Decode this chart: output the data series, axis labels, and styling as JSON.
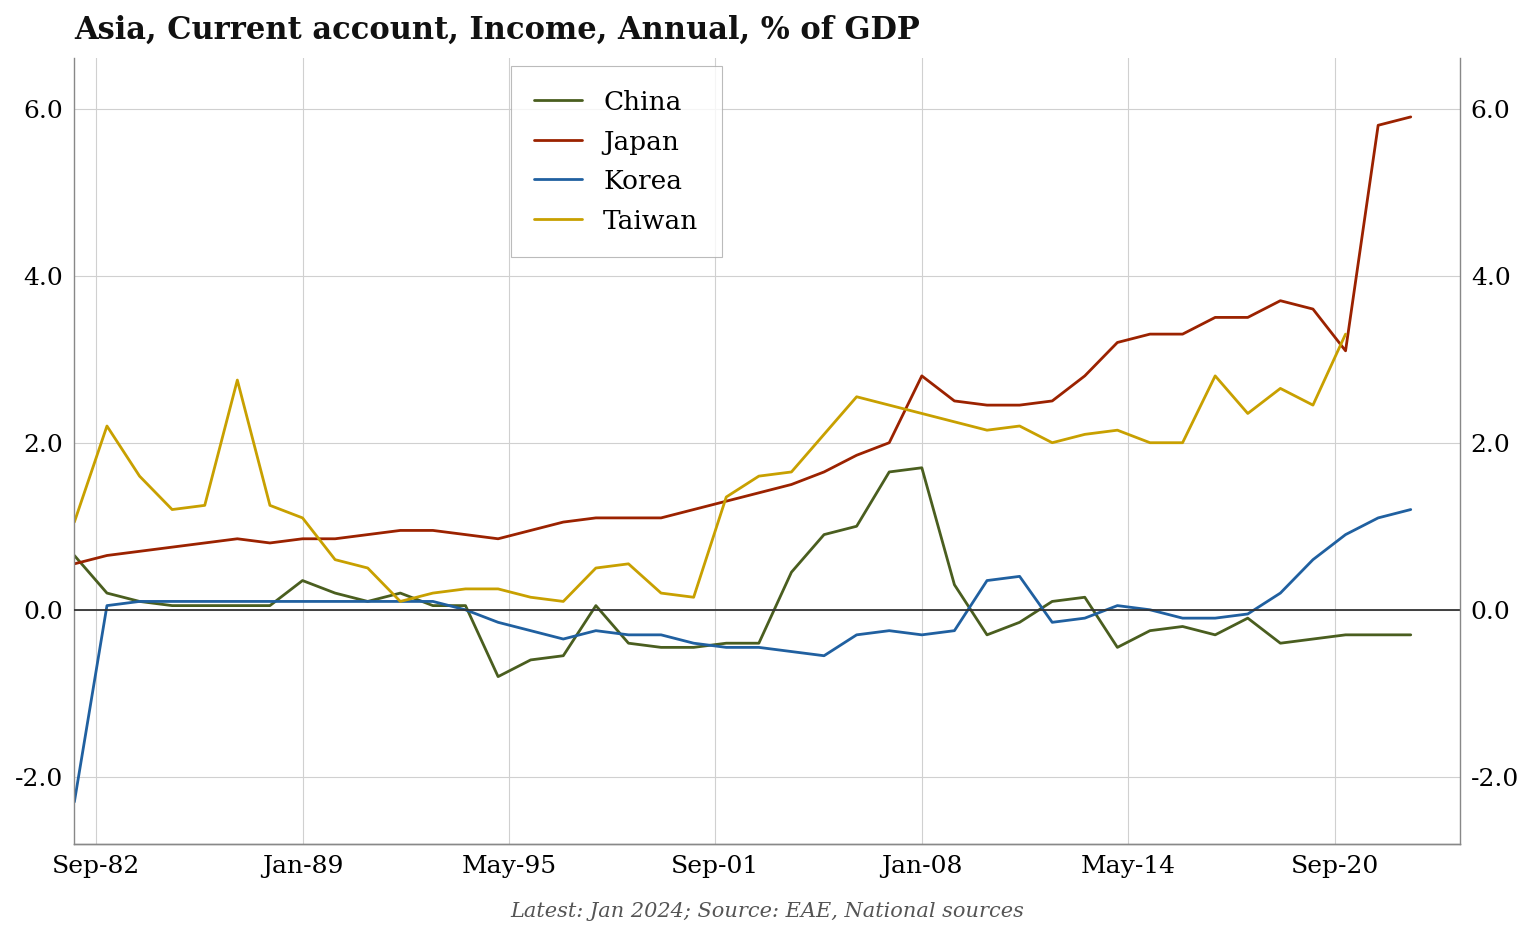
{
  "title": "Asia, Current account, Income, Annual, % of GDP",
  "subtitle": "Latest: Jan 2024; Source: EAE, National sources",
  "ylim": [
    -2.8,
    6.6
  ],
  "yticks": [
    -2.0,
    0.0,
    2.0,
    4.0,
    6.0
  ],
  "background_color": "#ffffff",
  "grid_color": "#d0d0d0",
  "zero_line_color": "#333333",
  "colors": {
    "China": "#4a5e1f",
    "Japan": "#9b2200",
    "Korea": "#2060a0",
    "Taiwan": "#c8a000"
  },
  "china": {
    "years": [
      1982,
      1983,
      1984,
      1985,
      1986,
      1987,
      1988,
      1989,
      1990,
      1991,
      1992,
      1993,
      1994,
      1995,
      1996,
      1997,
      1998,
      1999,
      2000,
      2001,
      2002,
      2003,
      2004,
      2005,
      2006,
      2007,
      2008,
      2009,
      2010,
      2011,
      2012,
      2013,
      2014,
      2015,
      2016,
      2017,
      2018,
      2019,
      2020,
      2021,
      2022,
      2023
    ],
    "values": [
      0.65,
      0.2,
      0.1,
      0.05,
      0.05,
      0.05,
      0.05,
      0.35,
      0.2,
      0.1,
      0.2,
      0.05,
      0.05,
      -0.8,
      -0.6,
      -0.55,
      0.05,
      -0.4,
      -0.45,
      -0.45,
      -0.4,
      -0.4,
      0.45,
      0.9,
      1.0,
      1.65,
      1.7,
      0.3,
      -0.3,
      -0.15,
      0.1,
      0.15,
      -0.45,
      -0.25,
      -0.2,
      -0.3,
      -0.1,
      -0.4,
      -0.35,
      -0.3,
      -0.3,
      -0.3
    ]
  },
  "japan": {
    "years": [
      1982,
      1983,
      1984,
      1985,
      1986,
      1987,
      1988,
      1989,
      1990,
      1991,
      1992,
      1993,
      1994,
      1995,
      1996,
      1997,
      1998,
      1999,
      2000,
      2001,
      2002,
      2003,
      2004,
      2005,
      2006,
      2007,
      2008,
      2009,
      2010,
      2011,
      2012,
      2013,
      2014,
      2015,
      2016,
      2017,
      2018,
      2019,
      2020,
      2021,
      2022,
      2023
    ],
    "values": [
      0.55,
      0.65,
      0.7,
      0.75,
      0.8,
      0.85,
      0.8,
      0.85,
      0.85,
      0.9,
      0.95,
      0.95,
      0.9,
      0.85,
      0.95,
      1.05,
      1.1,
      1.1,
      1.1,
      1.2,
      1.3,
      1.4,
      1.5,
      1.65,
      1.85,
      2.0,
      2.8,
      2.5,
      2.45,
      2.45,
      2.5,
      2.8,
      3.2,
      3.3,
      3.3,
      3.5,
      3.5,
      3.7,
      3.6,
      3.1,
      5.8,
      5.9
    ]
  },
  "korea": {
    "years": [
      1982,
      1983,
      1984,
      1985,
      1986,
      1987,
      1988,
      1989,
      1990,
      1991,
      1992,
      1993,
      1994,
      1995,
      1996,
      1997,
      1998,
      1999,
      2000,
      2001,
      2002,
      2003,
      2004,
      2005,
      2006,
      2007,
      2008,
      2009,
      2010,
      2011,
      2012,
      2013,
      2014,
      2015,
      2016,
      2017,
      2018,
      2019,
      2020,
      2021,
      2022,
      2023
    ],
    "values": [
      -2.3,
      0.05,
      0.1,
      0.1,
      0.1,
      0.1,
      0.1,
      0.1,
      0.1,
      0.1,
      0.1,
      0.1,
      0.0,
      -0.15,
      -0.25,
      -0.35,
      -0.25,
      -0.3,
      -0.3,
      -0.4,
      -0.45,
      -0.45,
      -0.5,
      -0.55,
      -0.3,
      -0.25,
      -0.3,
      -0.25,
      0.35,
      0.4,
      -0.15,
      -0.1,
      0.05,
      0.0,
      -0.1,
      -0.1,
      -0.05,
      0.2,
      0.6,
      0.9,
      1.1,
      1.2
    ]
  },
  "taiwan": {
    "years": [
      1982,
      1983,
      1984,
      1985,
      1986,
      1987,
      1988,
      1989,
      1990,
      1991,
      1992,
      1993,
      1994,
      1995,
      1996,
      1997,
      1998,
      1999,
      2000,
      2001,
      2002,
      2003,
      2004,
      2005,
      2006,
      2007,
      2008,
      2009,
      2010,
      2011,
      2012,
      2013,
      2014,
      2015,
      2016,
      2017,
      2018,
      2019,
      2020,
      2021,
      2022,
      2023
    ],
    "values": [
      1.05,
      2.2,
      1.6,
      1.2,
      1.25,
      2.75,
      1.25,
      1.1,
      0.6,
      0.5,
      0.1,
      0.2,
      0.25,
      0.25,
      0.15,
      0.1,
      0.5,
      0.55,
      0.2,
      0.15,
      1.35,
      1.6,
      1.65,
      2.1,
      2.55,
      2.45,
      2.35,
      2.25,
      2.15,
      2.2,
      2.0,
      2.1,
      2.15,
      2.0,
      2.0,
      2.8,
      2.35,
      2.65,
      2.45,
      3.3,
      null,
      null
    ]
  },
  "xtick_positions": [
    1982.667,
    1989.0,
    1995.333,
    2001.667,
    2008.0,
    2014.333,
    2020.667
  ],
  "xtick_labels": [
    "Sep-82",
    "Jan-89",
    "May-95",
    "Sep-01",
    "Jan-08",
    "May-14",
    "Sep-20"
  ]
}
